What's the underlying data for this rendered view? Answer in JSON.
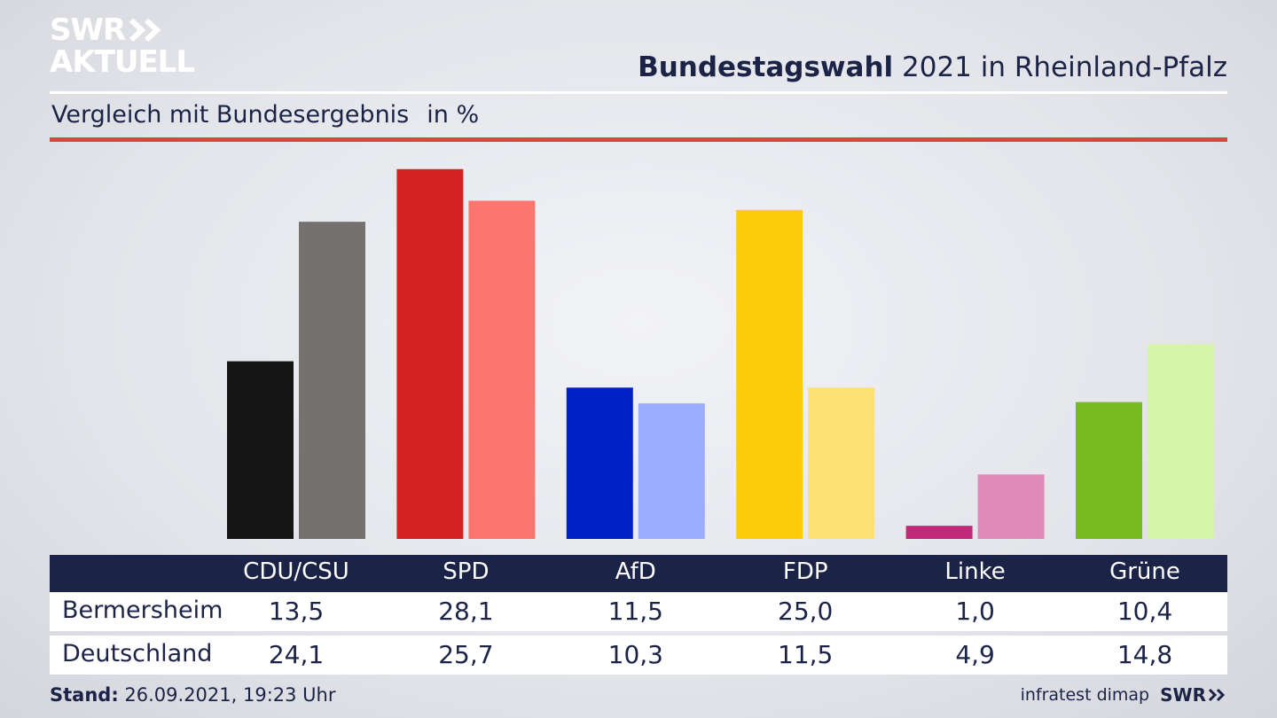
{
  "brand": {
    "line1": "SWR",
    "line2": "AKTUELL",
    "footer_logo": "SWR",
    "source": "infratest dimap"
  },
  "header": {
    "title_bold": "Bundestagswahl",
    "title_rest": " 2021 in Rheinland-Pfalz"
  },
  "subtitle": {
    "text": "Vergleich mit Bundesergebnis",
    "unit": "in %"
  },
  "footer": {
    "stand_label": "Stand:",
    "stand_value": " 26.09.2021, 19:23 Uhr"
  },
  "colors": {
    "header_bar": "#1b2347",
    "red_rule": "#d9473b"
  },
  "chart_data": {
    "type": "bar",
    "title": "Bundestagswahl 2021 in Rheinland-Pfalz",
    "subtitle": "Vergleich mit Bundesergebnis",
    "ylabel": "in %",
    "ylim": [
      0,
      29.5
    ],
    "grid": false,
    "categories": [
      "CDU/CSU",
      "SPD",
      "AfD",
      "FDP",
      "Linke",
      "Grüne"
    ],
    "series": [
      {
        "name": "Bermersheim",
        "values": [
          13.5,
          28.1,
          11.5,
          25.0,
          1.0,
          10.4
        ],
        "labels": [
          "13,5",
          "28,1",
          "11,5",
          "25,0",
          "1,0",
          "10,4"
        ],
        "colors": [
          "#141414",
          "#d42222",
          "#0121c6",
          "#fdcb0b",
          "#c22a79",
          "#78bb20"
        ]
      },
      {
        "name": "Deutschland",
        "values": [
          24.1,
          25.7,
          10.3,
          11.5,
          4.9,
          14.8
        ],
        "labels": [
          "24,1",
          "25,7",
          "10,3",
          "11,5",
          "4,9",
          "14,8"
        ],
        "colors": [
          "#74716f",
          "#fe7570",
          "#9dadfd",
          "#fde174",
          "#e08ab9",
          "#d4f6a6"
        ]
      }
    ]
  }
}
